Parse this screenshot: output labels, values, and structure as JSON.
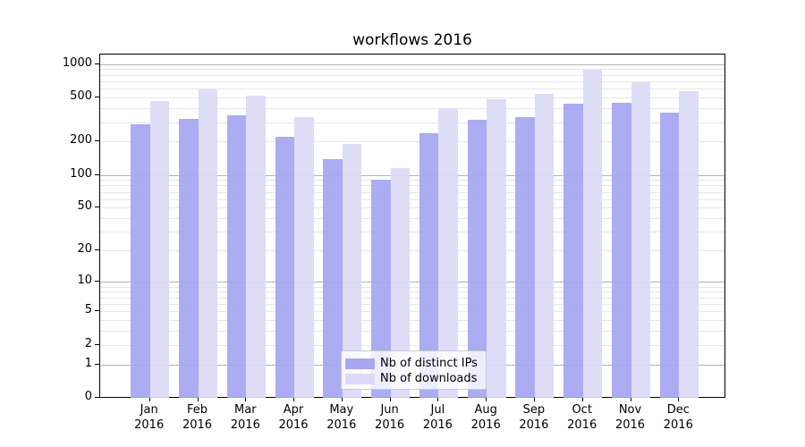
{
  "figure": {
    "background": "#ffffff"
  },
  "chart_data": {
    "type": "bar",
    "title": "workflows 2016",
    "categories": [
      "Jan 2016",
      "Feb 2016",
      "Mar 2016",
      "Apr 2016",
      "May 2016",
      "Jun 2016",
      "Jul 2016",
      "Aug 2016",
      "Sep 2016",
      "Oct 2016",
      "Nov 2016",
      "Dec 2016"
    ],
    "series": [
      {
        "name": "Nb of distinct IPs",
        "color": "#a6a6f1",
        "values": [
          285,
          320,
          345,
          220,
          140,
          90,
          237,
          313,
          330,
          437,
          445,
          367
        ]
      },
      {
        "name": "Nb of downloads",
        "color": "#dadaf8",
        "values": [
          465,
          595,
          520,
          330,
          190,
          115,
          400,
          480,
          535,
          880,
          680,
          565
        ]
      }
    ],
    "xlabel": "",
    "ylabel": "",
    "yscale": "log10(1+y)",
    "ylim": [
      0,
      1240
    ],
    "yticks": {
      "values": [
        0,
        1,
        2,
        5,
        10,
        20,
        50,
        100,
        200,
        500,
        1000
      ],
      "labels": [
        "0",
        "1",
        "2",
        "5",
        "10",
        "20",
        "50",
        "100",
        "200",
        "500",
        "1000"
      ]
    },
    "major_grid_values": [
      1,
      10,
      100,
      1000
    ],
    "minor_grid_values": [
      2,
      3,
      4,
      5,
      6,
      7,
      8,
      9,
      20,
      30,
      40,
      50,
      60,
      70,
      80,
      90,
      200,
      300,
      400,
      500,
      600,
      700,
      800,
      900
    ],
    "grid": "horizontal",
    "legend_position": "lower-center",
    "colors": {
      "spine": "#000000",
      "grid_major": "#b3b3b3",
      "grid_minor": "#e7e7e7",
      "tick": "#000000",
      "text": "#000000"
    }
  }
}
